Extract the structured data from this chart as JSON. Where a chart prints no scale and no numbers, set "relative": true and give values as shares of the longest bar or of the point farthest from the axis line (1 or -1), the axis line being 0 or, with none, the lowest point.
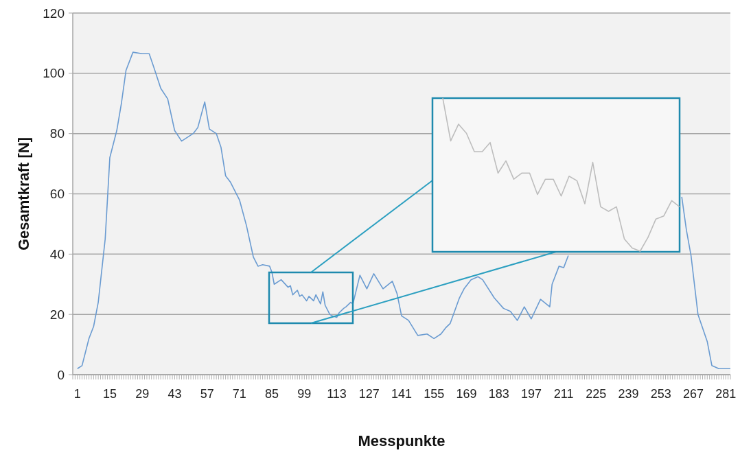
{
  "chart_data": [
    {
      "type": "line",
      "xlabel": "Messpunkte",
      "ylabel": "Gesamtkraft  [N]",
      "x": [
        1,
        3,
        6,
        8,
        10,
        13,
        15,
        18,
        20,
        22,
        25,
        29,
        32,
        34,
        37,
        40,
        43,
        46,
        51,
        53,
        56,
        58,
        61,
        63,
        65,
        67,
        71,
        74,
        77,
        79,
        81,
        84,
        85,
        86,
        89,
        92,
        93,
        94,
        96,
        97,
        98,
        100,
        101,
        103,
        104,
        106,
        107,
        108,
        110,
        111,
        113,
        114,
        116,
        117,
        119,
        120,
        123,
        126,
        129,
        133,
        137,
        139,
        141,
        144,
        148,
        152,
        155,
        158,
        160,
        162,
        166,
        168,
        171,
        174,
        176,
        181,
        185,
        188,
        191,
        194,
        197,
        201,
        205,
        206,
        209,
        211,
        213,
        235,
        262,
        264,
        266,
        269,
        273,
        275,
        278,
        281,
        283
      ],
      "series": [
        {
          "color": "#6a9bd1",
          "values": [
            2,
            3,
            12,
            16,
            24,
            45,
            72,
            81,
            90,
            101,
            107,
            106.5,
            106.5,
            102,
            95,
            91.5,
            81,
            77.5,
            80,
            82,
            90.5,
            81.5,
            80,
            75.5,
            66,
            64,
            58,
            49.5,
            39,
            36,
            36.5,
            36,
            34,
            30,
            31.5,
            29,
            29.5,
            26.5,
            28,
            26,
            26.5,
            24.5,
            26,
            24.5,
            26.5,
            23.5,
            27.5,
            23,
            20,
            19.5,
            19,
            20.5,
            22,
            22.5,
            24,
            23.5,
            33,
            28.5,
            33.5,
            28.5,
            31,
            27,
            19.5,
            18,
            13,
            13.5,
            12,
            13.5,
            15.5,
            17,
            25.5,
            28.5,
            31.5,
            32.5,
            31.5,
            25.5,
            22,
            21,
            18,
            22.5,
            18.5,
            25,
            22.5,
            30,
            36,
            35.5,
            39.5,
            null,
            59,
            48,
            39.5,
            20,
            11,
            3,
            2,
            2,
            2
          ]
        }
      ],
      "xlim": [
        -1,
        283
      ],
      "ylim": [
        0,
        120
      ],
      "xticks": [
        1,
        15,
        29,
        43,
        57,
        71,
        85,
        99,
        113,
        127,
        141,
        155,
        169,
        183,
        197,
        211,
        225,
        239,
        253,
        267,
        281
      ],
      "yticks": [
        0,
        20,
        40,
        60,
        80,
        100,
        120
      ],
      "grid": "y",
      "marker": "none",
      "line_style": "solid"
    },
    {
      "type": "line",
      "relative": true,
      "categories": [
        null,
        null,
        null,
        null,
        null,
        null,
        null,
        null,
        null,
        null,
        null,
        null,
        null,
        null,
        null,
        null,
        null,
        null,
        null,
        null,
        null,
        null,
        null,
        null,
        null,
        null,
        null,
        null,
        null,
        null,
        null
      ],
      "series": [
        {
          "color": "#bdbdbd",
          "values": [
            1,
            0.72,
            0.83,
            0.77,
            0.65,
            0.65,
            0.71,
            0.51,
            0.59,
            0.47,
            0.51,
            0.51,
            0.37,
            0.47,
            0.47,
            0.36,
            0.49,
            0.46,
            0.31,
            0.58,
            0.29,
            0.26,
            0.29,
            0.08,
            0.02,
            0,
            0.09,
            0.21,
            0.23,
            0.33,
            0.29
          ]
        }
      ],
      "marker": "none",
      "line_style": "solid"
    }
  ]
}
